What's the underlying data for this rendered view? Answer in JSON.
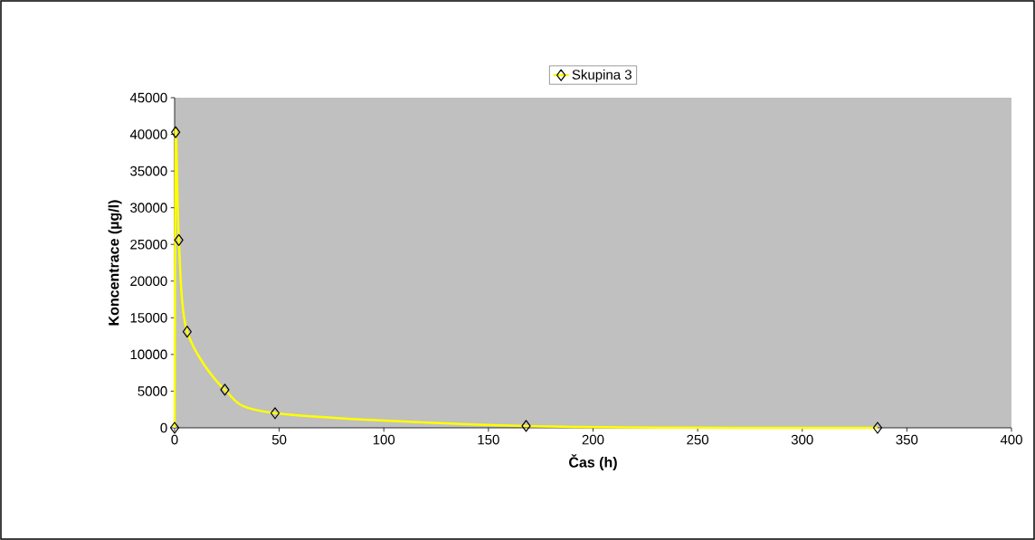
{
  "chart_data": {
    "type": "line",
    "xlabel": "Čas (h)",
    "ylabel": "Koncentrace (µg/l)",
    "x": [
      0,
      0.5,
      2,
      6,
      24,
      48,
      168,
      336
    ],
    "series": [
      {
        "name": "Skupina 3",
        "color": "#ffff00",
        "values": [
          0,
          40300,
          25600,
          13100,
          5200,
          2000,
          250,
          0
        ]
      }
    ],
    "xlim": [
      0,
      400
    ],
    "xticks": [
      0,
      50,
      100,
      150,
      200,
      250,
      300,
      350,
      400
    ],
    "ylim": [
      0,
      45000
    ],
    "yticks": [
      0,
      5000,
      10000,
      15000,
      20000,
      25000,
      30000,
      35000,
      40000,
      45000
    ],
    "marker": "diamond",
    "line_style": "solid",
    "legend": "top",
    "grid": false
  }
}
